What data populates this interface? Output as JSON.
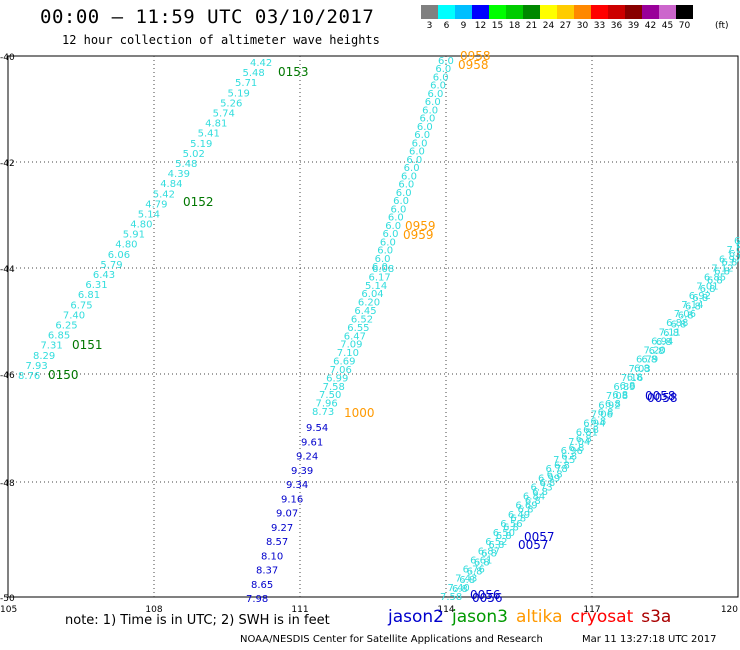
{
  "header": {
    "title": "00:00 – 11:59 UTC 03/10/2017",
    "subtitle": "12 hour collection of altimeter wave heights"
  },
  "colorbar": {
    "unit": "(ft)",
    "bins": [
      {
        "label": "3",
        "color": "#808080"
      },
      {
        "label": "6",
        "color": "#00ffff"
      },
      {
        "label": "9",
        "color": "#00bfff"
      },
      {
        "label": "12",
        "color": "#0000ff"
      },
      {
        "label": "15",
        "color": "#00ff00"
      },
      {
        "label": "18",
        "color": "#00cc00"
      },
      {
        "label": "21",
        "color": "#008800"
      },
      {
        "label": "24",
        "color": "#ffff00"
      },
      {
        "label": "27",
        "color": "#ffcc00"
      },
      {
        "label": "30",
        "color": "#ff8800"
      },
      {
        "label": "33",
        "color": "#ff0000"
      },
      {
        "label": "36",
        "color": "#cc0000"
      },
      {
        "label": "39",
        "color": "#880000"
      },
      {
        "label": "42",
        "color": "#990099"
      },
      {
        "label": "45",
        "color": "#cc66cc"
      },
      {
        "label": "70",
        "color": "#000000"
      }
    ]
  },
  "map": {
    "lon_ticks": [
      "105",
      "108",
      "111",
      "114",
      "117",
      "120"
    ],
    "lat_ticks": [
      "-40",
      "-42",
      "-44",
      "-46",
      "-48",
      "-50"
    ],
    "colors": {
      "cyan": "#33dddd",
      "blue": "#0000cc",
      "green": "#007700",
      "orange": "#ff9900"
    }
  },
  "tracks": {
    "a": {
      "values": [
        "4.42",
        "5.48",
        "5.71",
        "5.19",
        "5.26",
        "5.74",
        "4.81",
        "5.41",
        "5.19",
        "5.02",
        "5.48",
        "4.39",
        "4.84",
        "5.42",
        "4.79",
        "5.14",
        "4.80",
        "5.91",
        "4.80",
        "6.06",
        "5.79",
        "6.43",
        "6.31",
        "6.81",
        "6.75",
        "7.40",
        "6.25",
        "6.85",
        "7.31",
        "8.29",
        "7.93",
        "8.76"
      ],
      "times": [
        "0153",
        "0152",
        "0151",
        "0150"
      ]
    },
    "b": {
      "values": [
        "6.08",
        "6.17",
        "5.14",
        "6.04",
        "6.20",
        "6.45",
        "6.52",
        "6.55",
        "6.47",
        "7.09",
        "7.10",
        "6.69",
        "7.06",
        "6.99",
        "7.58",
        "7.50",
        "7.96",
        "8.73"
      ],
      "times": [
        "0958",
        "0958",
        "0959",
        "0959",
        "1000"
      ]
    },
    "c": {
      "values": [
        "9.54",
        "9.61",
        "9.24",
        "9.39",
        "9.34",
        "9.16",
        "9.07",
        "9.27",
        "8.57",
        "8.10",
        "8.37",
        "8.65",
        "7.98"
      ]
    },
    "d": {
      "values": [
        "7.58",
        "7.40",
        "7.43",
        "6.76",
        "6.61",
        "6.87",
        "6.52",
        "6.50",
        "6.56",
        "6.49",
        "6.69",
        "6.84",
        "6.73",
        "6.99",
        "6.78",
        "7.15",
        "6.96",
        "7.04",
        "6.81",
        "6.94",
        "7.06",
        "6.92",
        "7.08",
        "6.89",
        "7.16",
        "7.03",
        "6.79",
        "7.20",
        "6.94",
        "7.11",
        "6.88",
        "7.06",
        "7.14",
        "6.92",
        "7.01",
        "6.85",
        "7.12",
        "6.97",
        "7.08",
        "6.90"
      ],
      "times": [
        "0056",
        "0056",
        "0057",
        "0057",
        "0058",
        "0058"
      ]
    }
  },
  "footer": {
    "note": "note:  1) Time is in UTC;  2) SWH is in feet",
    "legend": [
      {
        "name": "jason2",
        "color": "#0000cc"
      },
      {
        "name": "jason3",
        "color": "#009900"
      },
      {
        "name": "altika",
        "color": "#ff9900"
      },
      {
        "name": "cryosat",
        "color": "#ff0000"
      },
      {
        "name": "s3a",
        "color": "#aa0000"
      }
    ],
    "credit": "NOAA/NESDIS Center for Satellite Applications and Research",
    "stamp": "Mar 11 13:27:18 UTC 2017"
  }
}
